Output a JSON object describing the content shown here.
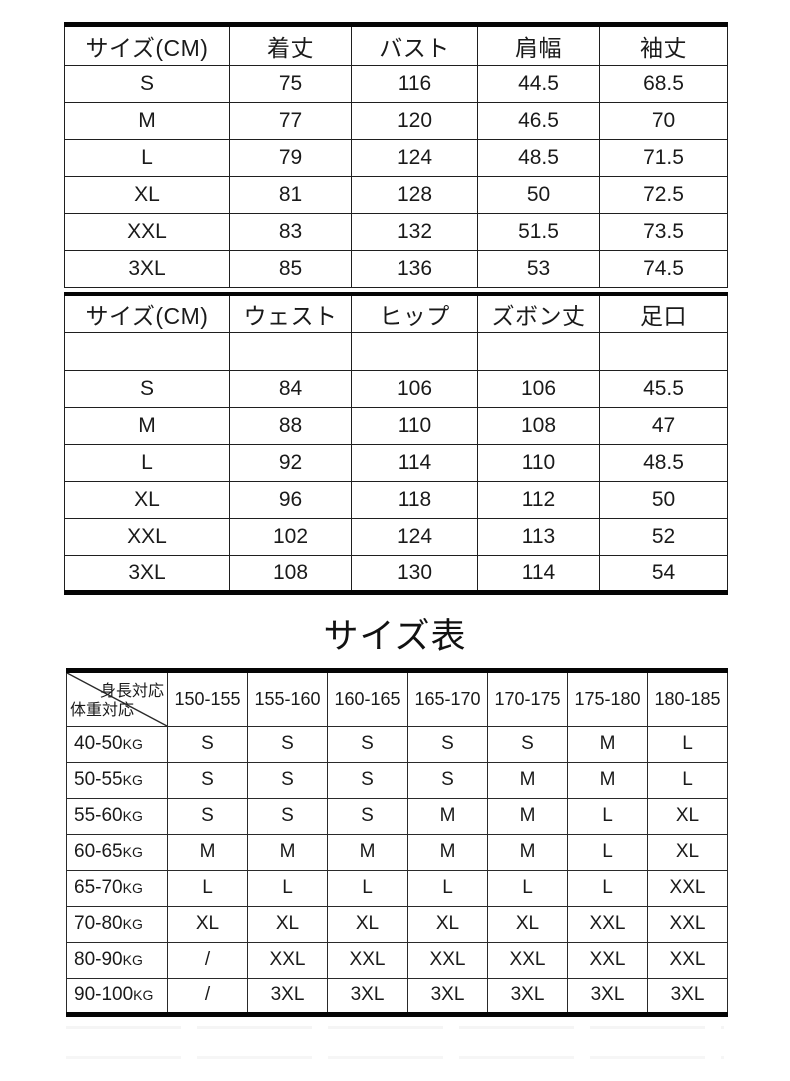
{
  "tops_table": {
    "headers": [
      "サイズ(CM)",
      "着丈",
      "バスト",
      "肩幅",
      "袖丈"
    ],
    "rows": [
      [
        "S",
        "75",
        "116",
        "44.5",
        "68.5"
      ],
      [
        "M",
        "77",
        "120",
        "46.5",
        "70"
      ],
      [
        "L",
        "79",
        "124",
        "48.5",
        "71.5"
      ],
      [
        "XL",
        "81",
        "128",
        "50",
        "72.5"
      ],
      [
        "XXL",
        "83",
        "132",
        "51.5",
        "73.5"
      ],
      [
        "3XL",
        "85",
        "136",
        "53",
        "74.5"
      ]
    ]
  },
  "bottoms_table": {
    "headers": [
      "サイズ(CM)",
      "ウェスト",
      "ヒップ",
      "ズボン丈",
      "足口"
    ],
    "empty_row": [
      "",
      "",
      "",
      "",
      ""
    ],
    "rows": [
      [
        "S",
        "84",
        "106",
        "106",
        "45.5"
      ],
      [
        "M",
        "88",
        "110",
        "108",
        "47"
      ],
      [
        "L",
        "92",
        "114",
        "110",
        "48.5"
      ],
      [
        "XL",
        "96",
        "118",
        "112",
        "50"
      ],
      [
        "XXL",
        "102",
        "124",
        "113",
        "52"
      ],
      [
        "3XL",
        "108",
        "130",
        "114",
        "54"
      ]
    ]
  },
  "size_chart": {
    "title": "サイズ表",
    "corner": {
      "top_right": "身長対応",
      "bottom_left": "体重対応"
    },
    "height_columns": [
      "150-155",
      "155-160",
      "160-165",
      "165-170",
      "170-175",
      "175-180",
      "180-185"
    ],
    "rows": [
      {
        "weight": "40-50",
        "unit": "KG",
        "sizes": [
          "S",
          "S",
          "S",
          "S",
          "S",
          "M",
          "L"
        ]
      },
      {
        "weight": "50-55",
        "unit": "KG",
        "sizes": [
          "S",
          "S",
          "S",
          "S",
          "M",
          "M",
          "L"
        ]
      },
      {
        "weight": "55-60",
        "unit": "KG",
        "sizes": [
          "S",
          "S",
          "S",
          "M",
          "M",
          "L",
          "XL"
        ]
      },
      {
        "weight": "60-65",
        "unit": "KG",
        "sizes": [
          "M",
          "M",
          "M",
          "M",
          "M",
          "L",
          "XL"
        ]
      },
      {
        "weight": "65-70",
        "unit": "KG",
        "sizes": [
          "L",
          "L",
          "L",
          "L",
          "L",
          "L",
          "XXL"
        ]
      },
      {
        "weight": "70-80",
        "unit": "KG",
        "sizes": [
          "XL",
          "XL",
          "XL",
          "XL",
          "XL",
          "XXL",
          "XXL"
        ]
      },
      {
        "weight": "80-90",
        "unit": "KG",
        "sizes": [
          "/",
          "XXL",
          "XXL",
          "XXL",
          "XXL",
          "XXL",
          "XXL"
        ]
      },
      {
        "weight": "90-100",
        "unit": "KG",
        "sizes": [
          "/",
          "3XL",
          "3XL",
          "3XL",
          "3XL",
          "3XL",
          "3XL"
        ]
      }
    ]
  },
  "colors": {
    "border_thick": "#050505",
    "border_thin": "#1f1f1f",
    "text": "#1a1a1a",
    "background": "#ffffff"
  }
}
